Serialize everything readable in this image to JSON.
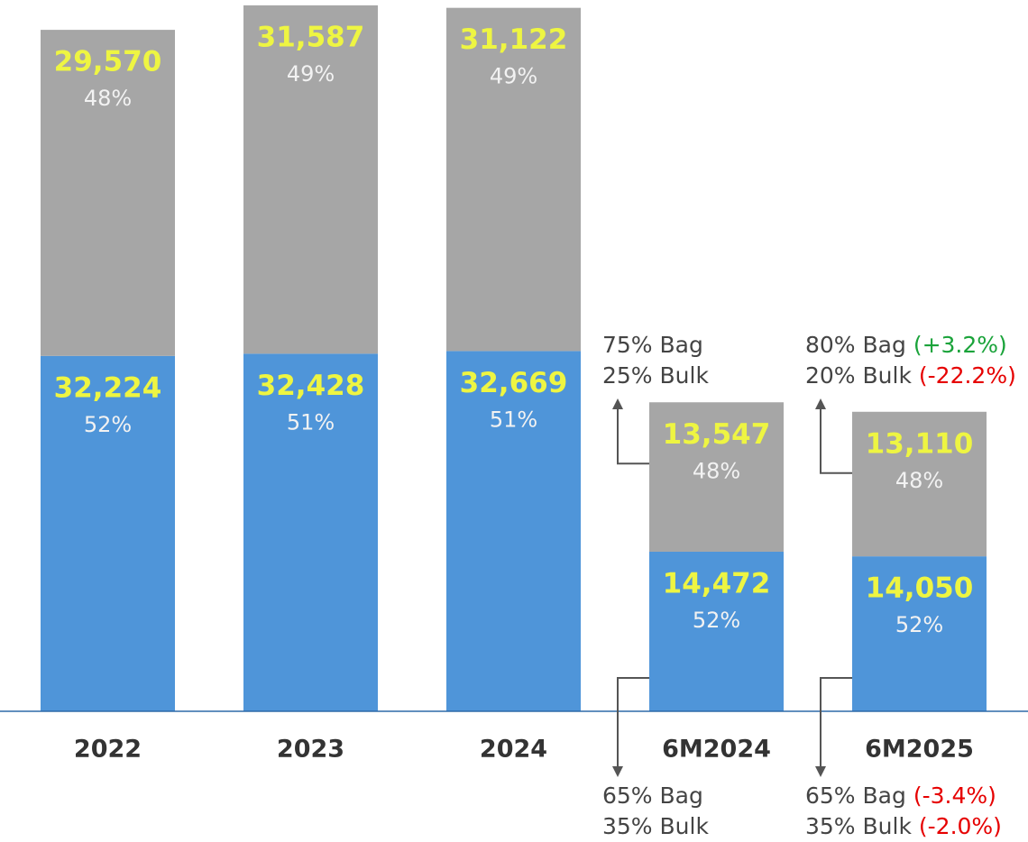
{
  "chart_data": {
    "type": "stacked_bar",
    "categories": [
      "2022",
      "2023",
      "2024",
      "6M2024",
      "6M2025"
    ],
    "ylim": [
      0,
      64500
    ],
    "series": [
      {
        "name": null,
        "color": "#4f95d9",
        "values": [
          32224,
          32428,
          32669,
          14472,
          14050
        ],
        "value_labels": [
          "32,224",
          "32,428",
          "32,669",
          "14,472",
          "14,050"
        ],
        "share_labels": [
          "52%",
          "51%",
          "51%",
          "52%",
          "52%"
        ]
      },
      {
        "name": null,
        "color": "#a6a6a6",
        "values": [
          29570,
          31587,
          31122,
          13547,
          13110
        ],
        "value_labels": [
          "29,570",
          "31,587",
          "31,122",
          "13,547",
          "13,110"
        ],
        "share_labels": [
          "48%",
          "49%",
          "49%",
          "48%",
          "48%"
        ]
      }
    ],
    "annotations": [
      {
        "category": 3,
        "position": "top",
        "lines": [
          {
            "text": "75% Bag"
          },
          {
            "text": "25% Bulk"
          }
        ]
      },
      {
        "category": 3,
        "position": "bottom",
        "lines": [
          {
            "text": "65% Bag"
          },
          {
            "text": "35% Bulk"
          }
        ]
      },
      {
        "category": 4,
        "position": "top",
        "lines": [
          {
            "text": "80% Bag",
            "change": "(+3.2%)",
            "change_color": "#1aa33a"
          },
          {
            "text": "20% Bulk",
            "change": "(-22.2%)",
            "change_color": "#e60000"
          }
        ]
      },
      {
        "category": 4,
        "position": "bottom",
        "lines": [
          {
            "text": "65% Bag",
            "change": "(-3.4%)",
            "change_color": "#e60000"
          },
          {
            "text": "35% Bulk",
            "change": "(-2.0%)",
            "change_color": "#e60000"
          }
        ]
      }
    ]
  }
}
